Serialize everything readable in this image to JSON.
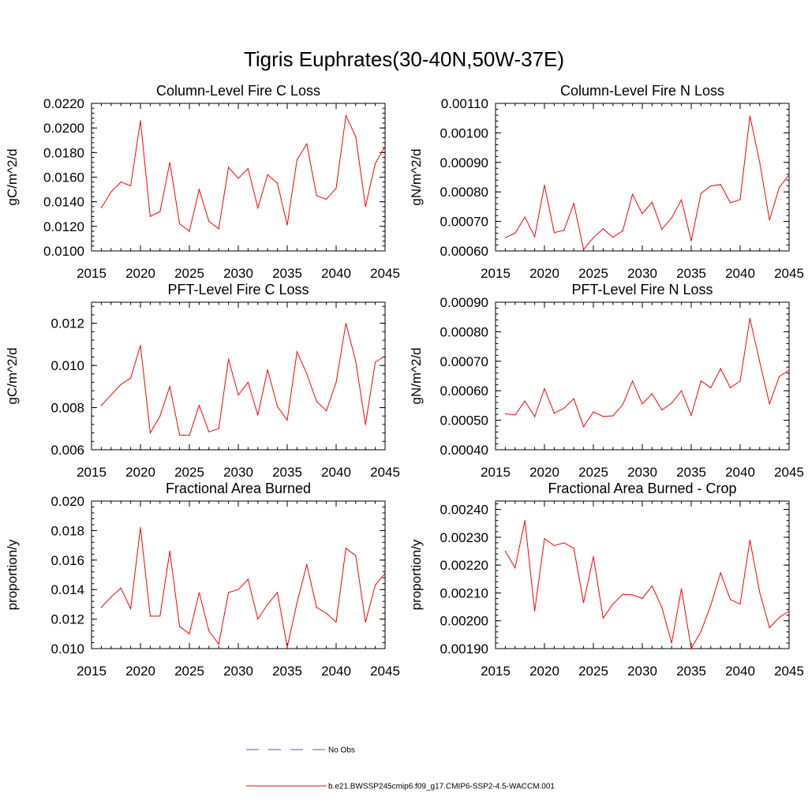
{
  "figure": {
    "title": "Tigris Euphrates(30-40N,50W-37E)"
  },
  "colors": {
    "series": "#ff0000",
    "obs": "#5a5ab4",
    "axis": "#000000"
  },
  "legend": {
    "placement": "bottom-center",
    "items": [
      {
        "label": "No Obs",
        "style": "dashed",
        "color": "#5a5ab4"
      },
      {
        "label": "b.e21.BWSSP245cmip6.f09_g17.CMIP6-SSP2-4.5-WACCM.001",
        "style": "solid",
        "color": "#ff0000"
      }
    ]
  },
  "chart_data": [
    {
      "type": "line",
      "title": "Column-Level Fire C Loss",
      "xlabel": "",
      "ylabel": "gC/m^2/d",
      "xlim": [
        2015,
        2045
      ],
      "ylim": [
        0.01,
        0.022
      ],
      "xticks": [
        "2015",
        "2020",
        "2025",
        "2030",
        "2035",
        "2040",
        "2045"
      ],
      "yticks": [
        "0.0100",
        "0.0120",
        "0.0140",
        "0.0160",
        "0.0180",
        "0.0200",
        "0.0220"
      ],
      "x": [
        2016,
        2017,
        2018,
        2019,
        2020,
        2021,
        2022,
        2023,
        2024,
        2025,
        2026,
        2027,
        2028,
        2029,
        2030,
        2031,
        2032,
        2033,
        2034,
        2035,
        2036,
        2037,
        2038,
        2039,
        2040,
        2041,
        2042,
        2043,
        2044,
        2045
      ],
      "series": [
        {
          "values": [
            0.0135,
            0.0148,
            0.0156,
            0.0153,
            0.0206,
            0.0128,
            0.0132,
            0.0172,
            0.0122,
            0.0116,
            0.015,
            0.0124,
            0.0118,
            0.0168,
            0.0159,
            0.0167,
            0.0135,
            0.0162,
            0.0155,
            0.0121,
            0.0174,
            0.0187,
            0.0145,
            0.0142,
            0.0151,
            0.021,
            0.0193,
            0.0136,
            0.0171,
            0.0185
          ]
        }
      ]
    },
    {
      "type": "line",
      "title": "Column-Level Fire N Loss",
      "xlabel": "",
      "ylabel": "gN/m^2/d",
      "xlim": [
        2015,
        2045
      ],
      "ylim": [
        0.0006,
        0.0011
      ],
      "xticks": [
        "2015",
        "2020",
        "2025",
        "2030",
        "2035",
        "2040",
        "2045"
      ],
      "yticks": [
        "0.00060",
        "0.00070",
        "0.00080",
        "0.00090",
        "0.00100",
        "0.00110"
      ],
      "x": [
        2016,
        2017,
        2018,
        2019,
        2020,
        2021,
        2022,
        2023,
        2024,
        2025,
        2026,
        2027,
        2028,
        2029,
        2030,
        2031,
        2032,
        2033,
        2034,
        2035,
        2036,
        2037,
        2038,
        2039,
        2040,
        2041,
        2042,
        2043,
        2044,
        2045
      ],
      "series": [
        {
          "values": [
            0.000645,
            0.00066,
            0.000715,
            0.000648,
            0.000823,
            0.000662,
            0.00067,
            0.000761,
            0.000605,
            0.000645,
            0.000675,
            0.000646,
            0.000668,
            0.000792,
            0.000726,
            0.000765,
            0.000673,
            0.000712,
            0.000773,
            0.000634,
            0.000795,
            0.00082,
            0.000825,
            0.000763,
            0.000774,
            0.001057,
            0.0009,
            0.000705,
            0.000815,
            0.000858
          ]
        }
      ]
    },
    {
      "type": "line",
      "title": "PFT-Level Fire C Loss",
      "xlabel": "",
      "ylabel": "gC/m^2/d",
      "xlim": [
        2015,
        2045
      ],
      "ylim": [
        0.006,
        0.013
      ],
      "xticks": [
        "2015",
        "2020",
        "2025",
        "2030",
        "2035",
        "2040",
        "2045"
      ],
      "yticks": [
        "0.006",
        "0.008",
        "0.010",
        "0.012"
      ],
      "x": [
        2016,
        2017,
        2018,
        2019,
        2020,
        2021,
        2022,
        2023,
        2024,
        2025,
        2026,
        2027,
        2028,
        2029,
        2030,
        2031,
        2032,
        2033,
        2034,
        2035,
        2036,
        2037,
        2038,
        2039,
        2040,
        2041,
        2042,
        2043,
        2044,
        2045
      ],
      "series": [
        {
          "values": [
            0.0081,
            0.0086,
            0.0091,
            0.0094,
            0.01095,
            0.0068,
            0.0076,
            0.009,
            0.0067,
            0.00668,
            0.0081,
            0.00685,
            0.007,
            0.0103,
            0.0086,
            0.0092,
            0.00765,
            0.0098,
            0.00805,
            0.0074,
            0.01065,
            0.0096,
            0.0083,
            0.00785,
            0.0092,
            0.012,
            0.0102,
            0.0072,
            0.01015,
            0.01045
          ]
        }
      ]
    },
    {
      "type": "line",
      "title": "PFT-Level Fire N Loss",
      "xlabel": "",
      "ylabel": "gN/m^2/d",
      "xlim": [
        2015,
        2045
      ],
      "ylim": [
        0.0004,
        0.0009
      ],
      "xticks": [
        "2015",
        "2020",
        "2025",
        "2030",
        "2035",
        "2040",
        "2045"
      ],
      "yticks": [
        "0.00040",
        "0.00050",
        "0.00060",
        "0.00070",
        "0.00080",
        "0.00090"
      ],
      "x": [
        2016,
        2017,
        2018,
        2019,
        2020,
        2021,
        2022,
        2023,
        2024,
        2025,
        2026,
        2027,
        2028,
        2029,
        2030,
        2031,
        2032,
        2033,
        2034,
        2035,
        2036,
        2037,
        2038,
        2039,
        2040,
        2041,
        2042,
        2043,
        2044,
        2045
      ],
      "series": [
        {
          "values": [
            0.000522,
            0.000518,
            0.000565,
            0.000512,
            0.000607,
            0.000524,
            0.000541,
            0.000573,
            0.000478,
            0.000528,
            0.000513,
            0.000515,
            0.000553,
            0.000633,
            0.000555,
            0.00059,
            0.000535,
            0.000558,
            0.0006,
            0.000516,
            0.000633,
            0.00061,
            0.000675,
            0.00061,
            0.000633,
            0.000845,
            0.000698,
            0.000556,
            0.000648,
            0.00067
          ]
        }
      ]
    },
    {
      "type": "line",
      "title": "Fractional Area Burned",
      "xlabel": "",
      "ylabel": "proportion/y",
      "xlim": [
        2015,
        2045
      ],
      "ylim": [
        0.01,
        0.02
      ],
      "xticks": [
        "2015",
        "2020",
        "2025",
        "2030",
        "2035",
        "2040",
        "2045"
      ],
      "yticks": [
        "0.010",
        "0.012",
        "0.014",
        "0.016",
        "0.018",
        "0.020"
      ],
      "x": [
        2016,
        2017,
        2018,
        2019,
        2020,
        2021,
        2022,
        2023,
        2024,
        2025,
        2026,
        2027,
        2028,
        2029,
        2030,
        2031,
        2032,
        2033,
        2034,
        2035,
        2036,
        2037,
        2038,
        2039,
        2040,
        2041,
        2042,
        2043,
        2044,
        2045
      ],
      "series": [
        {
          "values": [
            0.0128,
            0.0135,
            0.0141,
            0.0127,
            0.0182,
            0.0122,
            0.0122,
            0.0166,
            0.0115,
            0.011,
            0.0138,
            0.0112,
            0.0103,
            0.0138,
            0.014,
            0.0147,
            0.012,
            0.013,
            0.0138,
            0.0101,
            0.0131,
            0.0157,
            0.0128,
            0.0124,
            0.0118,
            0.0168,
            0.0163,
            0.0118,
            0.0143,
            0.0151
          ]
        }
      ]
    },
    {
      "type": "line",
      "title": "Fractional Area Burned - Crop",
      "xlabel": "",
      "ylabel": "proportion/y",
      "xlim": [
        2015,
        2045
      ],
      "ylim": [
        0.0019,
        0.00243
      ],
      "xticks": [
        "2015",
        "2020",
        "2025",
        "2030",
        "2035",
        "2040",
        "2045"
      ],
      "yticks": [
        "0.00190",
        "0.00200",
        "0.00210",
        "0.00220",
        "0.00230",
        "0.00240"
      ],
      "x": [
        2016,
        2017,
        2018,
        2019,
        2020,
        2021,
        2022,
        2023,
        2024,
        2025,
        2026,
        2027,
        2028,
        2029,
        2030,
        2031,
        2032,
        2033,
        2034,
        2035,
        2036,
        2037,
        2038,
        2039,
        2040,
        2041,
        2042,
        2043,
        2044,
        2045
      ],
      "series": [
        {
          "values": [
            0.00225,
            0.00219,
            0.00236,
            0.002035,
            0.002295,
            0.00227,
            0.00228,
            0.00226,
            0.002065,
            0.00223,
            0.00201,
            0.00206,
            0.002095,
            0.002093,
            0.00208,
            0.002125,
            0.002048,
            0.00192,
            0.002115,
            0.0019,
            0.001962,
            0.002056,
            0.002172,
            0.002076,
            0.00206,
            0.00229,
            0.002102,
            0.001975,
            0.002012,
            0.002035
          ]
        }
      ]
    }
  ]
}
